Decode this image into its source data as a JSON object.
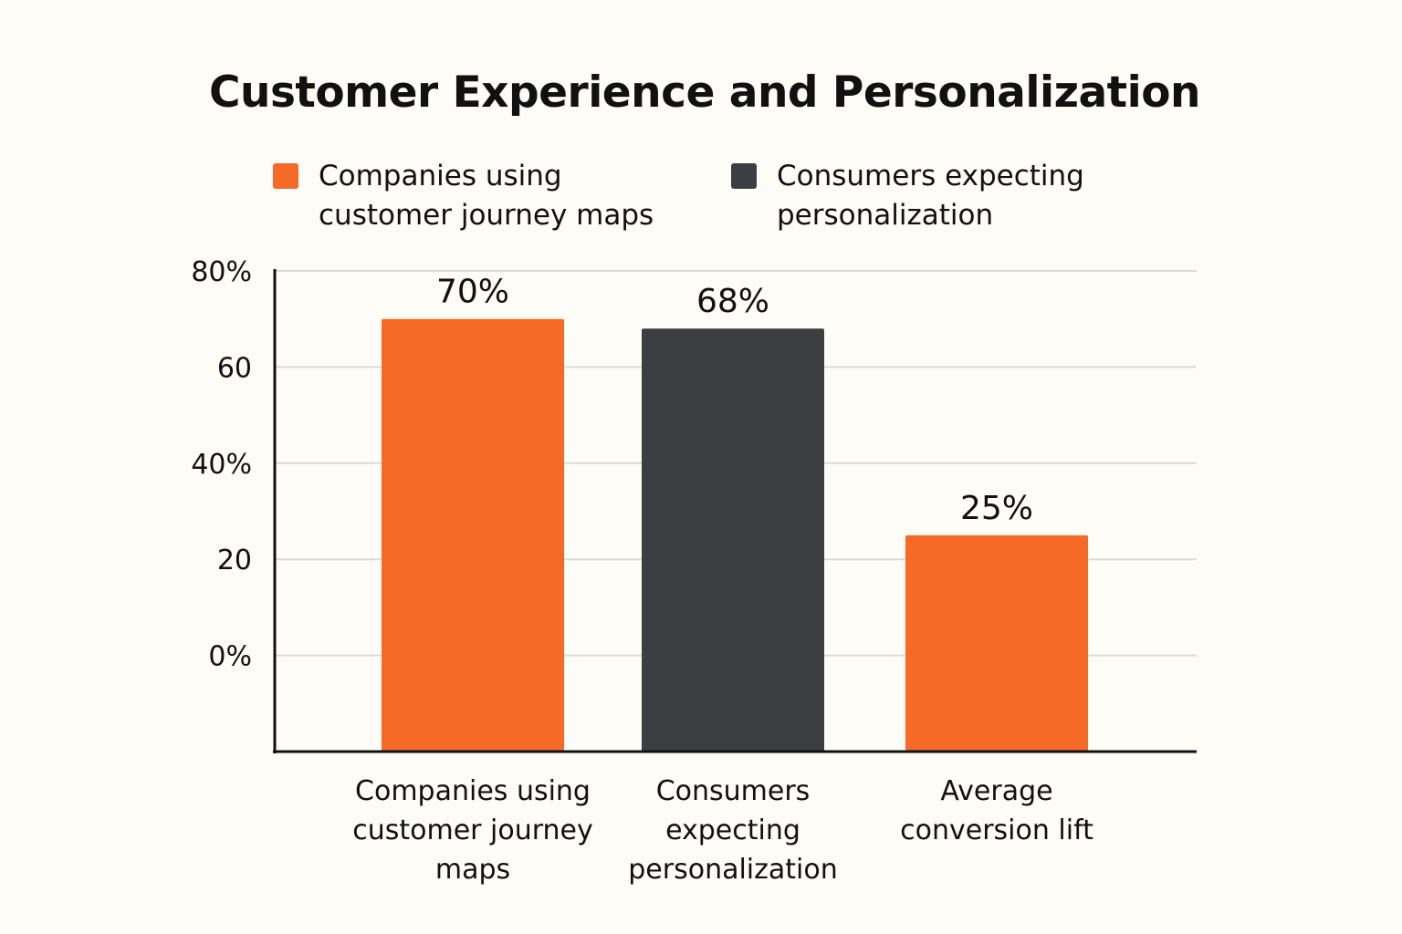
{
  "chart_data": {
    "type": "bar",
    "title": "Customer Experience and Personalization",
    "categories": [
      "Companies using customer journey maps",
      "Consumers expecting personalization",
      "Average conversion lift"
    ],
    "category_tick_labels": [
      [
        "Companies using",
        "customer journey",
        "maps"
      ],
      [
        "Consumers",
        "expecting",
        "personalization"
      ],
      [
        "Average",
        "conversion lift"
      ]
    ],
    "values": [
      70,
      68,
      25
    ],
    "data_labels": [
      "70%",
      "68%",
      "25%"
    ],
    "bar_series": [
      "companies",
      "consumers",
      "companies"
    ],
    "legend": [
      {
        "key": "companies",
        "label": "Companies using customer journey maps",
        "color": "#f56a26"
      },
      {
        "key": "consumers",
        "label": "Consumers expecting personalization",
        "color": "#3d3e42"
      }
    ],
    "legend_position": "top-left",
    "y_tick_values": [
      80,
      60,
      40,
      20,
      0
    ],
    "y_tick_labels": [
      "80%",
      "60",
      "40%",
      "20",
      "0%"
    ],
    "ylim": [
      -20,
      80
    ],
    "grid": true,
    "xlabel": "",
    "ylabel": ""
  }
}
